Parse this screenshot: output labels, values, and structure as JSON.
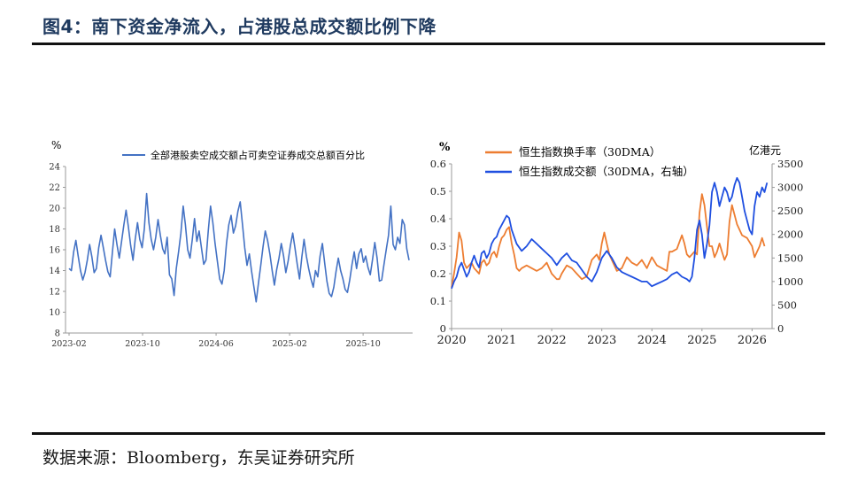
{
  "header": {
    "title": "图4：南下资金净流入，占港股总成交额比例下降"
  },
  "footer": {
    "source": "数据来源：Bloomberg，东吴证券研究所"
  },
  "chart_data": [
    {
      "type": "line",
      "unit": "%",
      "ylim": [
        8,
        24
      ],
      "yticks": [
        "8",
        "10",
        "12",
        "14",
        "16",
        "18",
        "20",
        "22",
        "24"
      ],
      "xticks": [
        "2023-02",
        "2023-10",
        "2024-06",
        "2025-02",
        "2025-10"
      ],
      "grid": false,
      "legend_position": "top",
      "colors": {
        "series": "#4472C4"
      },
      "series": [
        {
          "name": "全部港股卖空成交额占可卖空证券成交总额百分比",
          "x_start": "2023-02",
          "x_end": "2026-03",
          "values": [
            14.2,
            14.0,
            15.8,
            16.9,
            15.4,
            14.0,
            13.1,
            13.8,
            15.0,
            16.5,
            15.3,
            13.8,
            14.2,
            16.2,
            17.4,
            16.2,
            15.0,
            13.9,
            13.4,
            15.8,
            18.0,
            16.5,
            15.2,
            16.8,
            18.4,
            19.8,
            18.2,
            16.4,
            15.0,
            17.0,
            18.6,
            17.0,
            16.2,
            18.0,
            21.4,
            18.6,
            17.0,
            16.0,
            17.2,
            18.9,
            17.4,
            16.1,
            15.6,
            17.2,
            13.6,
            13.2,
            11.6,
            14.2,
            15.8,
            17.6,
            20.2,
            18.4,
            16.0,
            15.2,
            17.0,
            19.0,
            16.8,
            17.8,
            16.2,
            14.6,
            15.0,
            17.8,
            20.2,
            18.6,
            16.6,
            14.9,
            13.2,
            12.7,
            14.0,
            16.6,
            18.4,
            19.3,
            17.6,
            18.3,
            19.7,
            20.6,
            18.4,
            16.2,
            14.5,
            15.6,
            13.9,
            12.4,
            11.0,
            12.8,
            14.5,
            16.3,
            17.8,
            16.9,
            15.6,
            14.0,
            12.6,
            14.1,
            15.2,
            16.6,
            15.4,
            13.8,
            14.9,
            16.4,
            17.6,
            16.2,
            14.6,
            13.2,
            15.3,
            17.0,
            15.4,
            14.2,
            13.2,
            12.4,
            14.0,
            13.4,
            15.4,
            16.6,
            14.8,
            13.0,
            11.8,
            11.5,
            12.4,
            13.9,
            15.2,
            14.0,
            13.2,
            12.2,
            11.9,
            13.1,
            14.6,
            15.8,
            14.2,
            15.6,
            16.1,
            14.8,
            15.4,
            14.3,
            13.6,
            15.1,
            16.7,
            15.2,
            13.0,
            13.1,
            14.6,
            16.0,
            17.4,
            20.2,
            16.5,
            16.0,
            17.2,
            16.6,
            18.9,
            18.4,
            16.1,
            15.0
          ]
        }
      ]
    },
    {
      "type": "line",
      "unit_left": "%",
      "unit_right": "亿港元",
      "ylim": [
        0,
        0.6
      ],
      "y2lim": [
        0,
        3500
      ],
      "yticks": [
        "0",
        "0.1",
        "0.2",
        "0.3",
        "0.4",
        "0.5",
        "0.6"
      ],
      "y2ticks": [
        "0",
        "500",
        "1000",
        "1500",
        "2000",
        "2500",
        "3000",
        "3500"
      ],
      "xticks": [
        "2020",
        "2021",
        "2022",
        "2023",
        "2024",
        "2025",
        "2026"
      ],
      "x_range": [
        2020,
        2026.4
      ],
      "grid": false,
      "legend_position": "top",
      "colors": {
        "turnover": "#ED7D31",
        "volume": "#1F4FE0"
      },
      "series": [
        {
          "name": "恒生指数换手率（30DMA）",
          "axis": "left",
          "x": [
            2020.0,
            2020.05,
            2020.1,
            2020.15,
            2020.2,
            2020.25,
            2020.3,
            2020.35,
            2020.4,
            2020.45,
            2020.5,
            2020.55,
            2020.6,
            2020.65,
            2020.7,
            2020.75,
            2020.8,
            2020.85,
            2020.9,
            2020.95,
            2021.0,
            2021.05,
            2021.1,
            2021.15,
            2021.2,
            2021.25,
            2021.3,
            2021.35,
            2021.4,
            2021.5,
            2021.6,
            2021.7,
            2021.8,
            2021.9,
            2022.0,
            2022.1,
            2022.15,
            2022.2,
            2022.3,
            2022.4,
            2022.5,
            2022.6,
            2022.7,
            2022.75,
            2022.8,
            2022.85,
            2022.9,
            2022.95,
            2023.0,
            2023.05,
            2023.1,
            2023.15,
            2023.2,
            2023.3,
            2023.4,
            2023.5,
            2023.6,
            2023.7,
            2023.8,
            2023.9,
            2024.0,
            2024.1,
            2024.2,
            2024.3,
            2024.35,
            2024.4,
            2024.5,
            2024.6,
            2024.65,
            2024.7,
            2024.75,
            2024.8,
            2024.85,
            2024.9,
            2024.95,
            2025.0,
            2025.05,
            2025.1,
            2025.15,
            2025.2,
            2025.25,
            2025.3,
            2025.35,
            2025.4,
            2025.45,
            2025.5,
            2025.55,
            2025.6,
            2025.7,
            2025.8,
            2025.9,
            2026.0,
            2026.05,
            2026.1,
            2026.15,
            2026.2,
            2026.25
          ],
          "values": [
            0.15,
            0.2,
            0.26,
            0.35,
            0.32,
            0.24,
            0.22,
            0.23,
            0.24,
            0.22,
            0.21,
            0.2,
            0.24,
            0.25,
            0.23,
            0.24,
            0.27,
            0.28,
            0.26,
            0.3,
            0.33,
            0.34,
            0.36,
            0.37,
            0.31,
            0.27,
            0.22,
            0.21,
            0.22,
            0.23,
            0.22,
            0.21,
            0.22,
            0.24,
            0.2,
            0.18,
            0.18,
            0.2,
            0.23,
            0.22,
            0.2,
            0.18,
            0.19,
            0.22,
            0.25,
            0.26,
            0.27,
            0.25,
            0.31,
            0.35,
            0.31,
            0.27,
            0.25,
            0.21,
            0.22,
            0.26,
            0.24,
            0.23,
            0.25,
            0.22,
            0.26,
            0.23,
            0.22,
            0.21,
            0.28,
            0.28,
            0.29,
            0.34,
            0.31,
            0.27,
            0.26,
            0.27,
            0.28,
            0.27,
            0.42,
            0.49,
            0.45,
            0.37,
            0.3,
            0.3,
            0.26,
            0.28,
            0.31,
            0.28,
            0.25,
            0.27,
            0.39,
            0.45,
            0.38,
            0.34,
            0.33,
            0.3,
            0.26,
            0.28,
            0.3,
            0.33,
            0.3
          ]
        },
        {
          "name": "恒生指数成交额（30DMA，右轴）",
          "axis": "right",
          "x": [
            2020.0,
            2020.05,
            2020.1,
            2020.15,
            2020.2,
            2020.25,
            2020.3,
            2020.35,
            2020.4,
            2020.45,
            2020.5,
            2020.55,
            2020.6,
            2020.65,
            2020.7,
            2020.75,
            2020.8,
            2020.85,
            2020.9,
            2020.95,
            2021.0,
            2021.05,
            2021.1,
            2021.15,
            2021.2,
            2021.25,
            2021.3,
            2021.4,
            2021.5,
            2021.6,
            2021.7,
            2021.8,
            2021.9,
            2022.0,
            2022.1,
            2022.2,
            2022.3,
            2022.4,
            2022.5,
            2022.6,
            2022.7,
            2022.8,
            2022.9,
            2023.0,
            2023.1,
            2023.2,
            2023.3,
            2023.4,
            2023.5,
            2023.6,
            2023.7,
            2023.8,
            2023.9,
            2024.0,
            2024.1,
            2024.2,
            2024.3,
            2024.4,
            2024.5,
            2024.6,
            2024.7,
            2024.75,
            2024.8,
            2024.85,
            2024.9,
            2024.95,
            2025.0,
            2025.05,
            2025.1,
            2025.15,
            2025.2,
            2025.25,
            2025.3,
            2025.35,
            2025.4,
            2025.45,
            2025.5,
            2025.55,
            2025.6,
            2025.65,
            2025.7,
            2025.75,
            2025.8,
            2025.85,
            2025.9,
            2025.95,
            2026.0,
            2026.05,
            2026.1,
            2026.15,
            2026.2,
            2026.25,
            2026.3
          ],
          "values": [
            850,
            1000,
            1100,
            1300,
            1400,
            1250,
            1100,
            1200,
            1400,
            1550,
            1400,
            1300,
            1600,
            1650,
            1500,
            1600,
            1800,
            1900,
            1950,
            2100,
            2200,
            2300,
            2400,
            2350,
            2100,
            1950,
            1800,
            1650,
            1750,
            1900,
            1800,
            1700,
            1600,
            1500,
            1350,
            1500,
            1600,
            1450,
            1400,
            1250,
            1100,
            1000,
            1200,
            1500,
            1650,
            1500,
            1300,
            1200,
            1150,
            1100,
            1050,
            1000,
            1000,
            900,
            950,
            1000,
            1050,
            1150,
            1200,
            1100,
            1050,
            1000,
            1100,
            1500,
            2100,
            2300,
            2000,
            1500,
            1800,
            2200,
            2900,
            3100,
            2900,
            2600,
            2800,
            3000,
            2900,
            2700,
            2800,
            3050,
            3200,
            3100,
            2800,
            2500,
            2300,
            2100,
            2000,
            2600,
            2900,
            2800,
            3000,
            2900,
            3100
          ]
        }
      ]
    }
  ]
}
